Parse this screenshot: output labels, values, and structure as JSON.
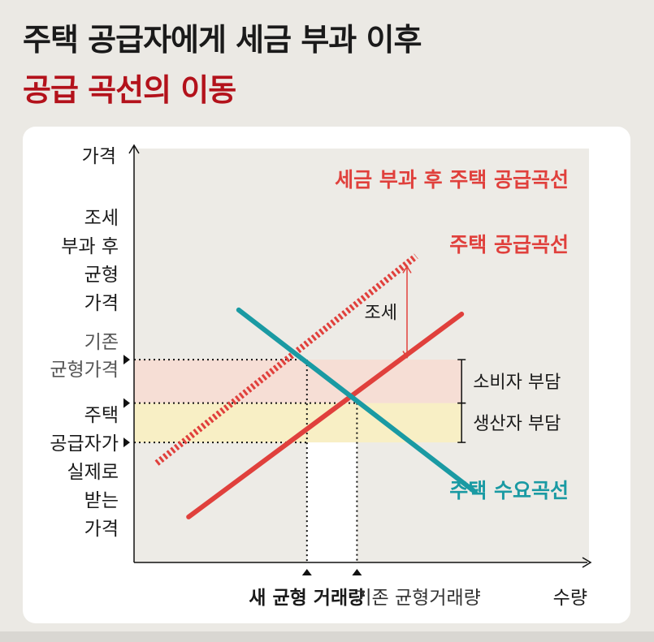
{
  "title": "주택 공급자에게 세금 부과 이후",
  "subtitle": "공급 곡선의 이동",
  "colors": {
    "supply": "#e0403c",
    "demand": "#1a9aa3",
    "consumer_band": "#f6ddd3",
    "producer_band": "#f9efc3",
    "plot_bg": "#edebe6",
    "title_red": "#b3121b"
  },
  "chart_data": {
    "type": "line",
    "xlabel": "수량",
    "ylabel": "가격",
    "xlim": [
      0,
      10
    ],
    "ylim": [
      0,
      10
    ],
    "grid": false,
    "series": [
      {
        "name": "주택 공급곡선",
        "style": "solid",
        "color": "#e0403c",
        "points": [
          [
            1.2,
            1.1
          ],
          [
            7.2,
            6.0
          ]
        ]
      },
      {
        "name": "세금 부과 후 주택 공급곡선",
        "style": "dashed",
        "color": "#e0403c",
        "points": [
          [
            0.5,
            2.4
          ],
          [
            6.2,
            7.4
          ]
        ]
      },
      {
        "name": "주택 수요곡선",
        "style": "solid",
        "color": "#1a9aa3",
        "points": [
          [
            2.3,
            6.1
          ],
          [
            7.5,
            1.7
          ]
        ]
      }
    ],
    "equilibria": {
      "new_quantity": 3.8,
      "original_quantity": 4.9,
      "tax_price": 4.9,
      "original_price": 3.85,
      "supplier_price": 2.9
    },
    "annotations": {
      "tax": "조세",
      "consumer_burden": "소비자 부담",
      "producer_burden": "생산자 부담",
      "y_tax_price": [
        "조세",
        "부과 후",
        "균형",
        "가격"
      ],
      "y_original_price": [
        "기존",
        "균형가격"
      ],
      "y_supplier_price": [
        "주택",
        "공급자가",
        "실제로",
        "받는",
        "가격"
      ],
      "x_new_quantity": "새 균형 거래량",
      "x_original_quantity": "기존 균형거래량"
    }
  }
}
